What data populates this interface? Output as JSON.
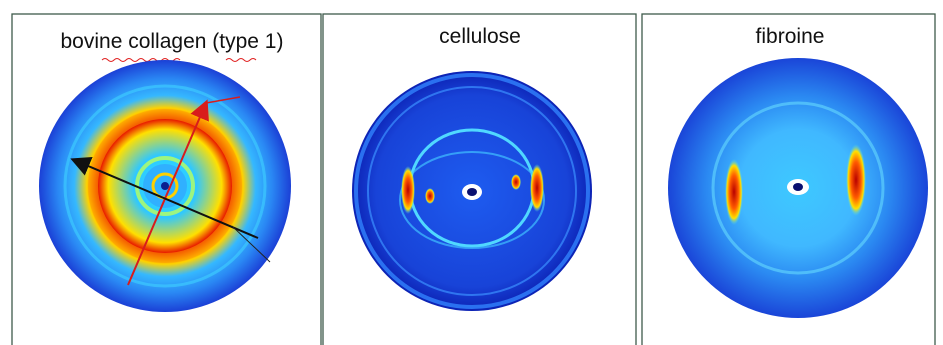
{
  "panels": [
    {
      "title": "bovine collagen (type 1)"
    },
    {
      "title": "cellulose"
    },
    {
      "title": "fibroine"
    }
  ]
}
